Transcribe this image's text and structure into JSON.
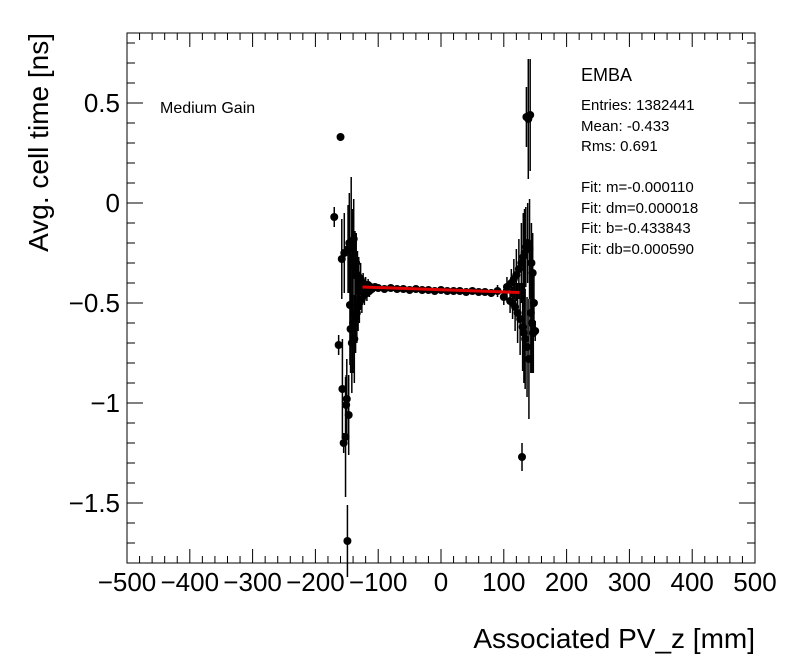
{
  "chart_data": {
    "type": "scatter",
    "title": "",
    "xlabel": "Associated PV_z [mm]",
    "ylabel": "Avg. cell time [ns]",
    "xlim": [
      -500,
      500
    ],
    "ylim": [
      -1.8,
      0.85
    ],
    "xticks": [
      -500,
      -400,
      -300,
      -200,
      -100,
      0,
      100,
      200,
      300,
      400,
      500
    ],
    "xtick_labels": [
      "−500",
      "−400",
      "−300",
      "−200",
      "−100",
      "0",
      "100",
      "200",
      "300",
      "400",
      "500"
    ],
    "yticks": [
      0.5,
      0,
      -0.5,
      -1,
      -1.5
    ],
    "ytick_labels": [
      "0.5",
      "0",
      "−0.5",
      "−1",
      "−1.5"
    ],
    "annotation": "Medium Gain",
    "stats": {
      "title": "EMBA",
      "lines": [
        "Entries: 1382441",
        "Mean: -0.433",
        "Rms: 0.691",
        "",
        "Fit: m=-0.000110",
        "Fit: dm=0.000018",
        "Fit: b=-0.433843",
        "Fit: db=0.000590"
      ]
    },
    "fit_line": {
      "slope": -0.00011,
      "intercept": -0.433843,
      "x_range": [
        -125,
        125
      ],
      "color": "#e00000"
    },
    "series": [
      {
        "name": "data",
        "color": "#000000",
        "x": [
          -170,
          -163,
          -160,
          -158,
          -157,
          -155,
          -154,
          -152,
          -151,
          -150,
          -149,
          -148,
          -147,
          -146,
          -145,
          -144,
          -143,
          -142,
          -141,
          -140,
          -139,
          -138,
          -137,
          -136,
          -135,
          -134,
          -133,
          -132,
          -131,
          -130,
          -128,
          -126,
          -124,
          -122,
          -120,
          -118,
          -116,
          -114,
          -112,
          -110,
          -105,
          -100,
          -90,
          -80,
          -70,
          -60,
          -50,
          -40,
          -30,
          -20,
          -10,
          0,
          10,
          20,
          30,
          40,
          50,
          60,
          70,
          80,
          90,
          100,
          105,
          110,
          112,
          114,
          116,
          118,
          120,
          122,
          124,
          126,
          128,
          129,
          130,
          131,
          132,
          133,
          134,
          135,
          136,
          137,
          138,
          139,
          140,
          141,
          142,
          143,
          144,
          145,
          146,
          147,
          148,
          150
        ],
        "y": [
          -0.07,
          -0.71,
          0.33,
          -0.28,
          -0.93,
          -1.2,
          -0.25,
          -1.17,
          -1.01,
          -0.98,
          -1.69,
          -0.23,
          -1.06,
          -0.2,
          -0.51,
          -0.63,
          -0.22,
          -0.7,
          -0.28,
          -0.6,
          -0.18,
          -0.68,
          -0.32,
          -0.57,
          -0.3,
          -0.55,
          -0.36,
          -0.52,
          -0.37,
          -0.5,
          -0.38,
          -0.48,
          -0.4,
          -0.46,
          -0.41,
          -0.45,
          -0.41,
          -0.44,
          -0.42,
          -0.43,
          -0.42,
          -0.425,
          -0.43,
          -0.425,
          -0.43,
          -0.43,
          -0.435,
          -0.43,
          -0.435,
          -0.435,
          -0.44,
          -0.435,
          -0.44,
          -0.44,
          -0.44,
          -0.445,
          -0.44,
          -0.445,
          -0.445,
          -0.45,
          -0.44,
          -0.47,
          -0.42,
          -0.49,
          -0.4,
          -0.5,
          -0.38,
          -0.52,
          -0.36,
          -0.55,
          -0.33,
          -0.58,
          -0.3,
          -1.27,
          -0.62,
          -0.27,
          -0.65,
          -0.25,
          -0.68,
          -0.22,
          0.43,
          -0.72,
          -0.2,
          0.42,
          -0.78,
          -0.23,
          0.44,
          -0.55,
          -0.3,
          -0.6,
          -0.35,
          -0.65,
          -0.5,
          -0.64
        ],
        "yerr": [
          0.05,
          0.05,
          0.02,
          0.2,
          0.25,
          0.05,
          0.2,
          0.3,
          0.15,
          0.2,
          0.18,
          0.22,
          0.2,
          0.25,
          0.3,
          0.22,
          0.35,
          0.25,
          0.25,
          0.25,
          0.2,
          0.22,
          0.18,
          0.18,
          0.15,
          0.15,
          0.12,
          0.12,
          0.1,
          0.1,
          0.08,
          0.07,
          0.05,
          0.05,
          0.04,
          0.04,
          0.03,
          0.03,
          0.02,
          0.02,
          0.015,
          0.01,
          0.01,
          0.01,
          0.01,
          0.01,
          0.01,
          0.01,
          0.01,
          0.01,
          0.01,
          0.01,
          0.01,
          0.01,
          0.01,
          0.01,
          0.01,
          0.01,
          0.01,
          0.02,
          0.03,
          0.04,
          0.05,
          0.06,
          0.07,
          0.08,
          0.1,
          0.12,
          0.13,
          0.15,
          0.15,
          0.18,
          0.2,
          0.07,
          0.22,
          0.22,
          0.25,
          0.22,
          0.25,
          0.2,
          0.15,
          0.25,
          0.2,
          0.3,
          0.3,
          0.25,
          0.28,
          0.3,
          0.2,
          0.25,
          0.2,
          0.2,
          0.15,
          0.05
        ]
      }
    ]
  }
}
